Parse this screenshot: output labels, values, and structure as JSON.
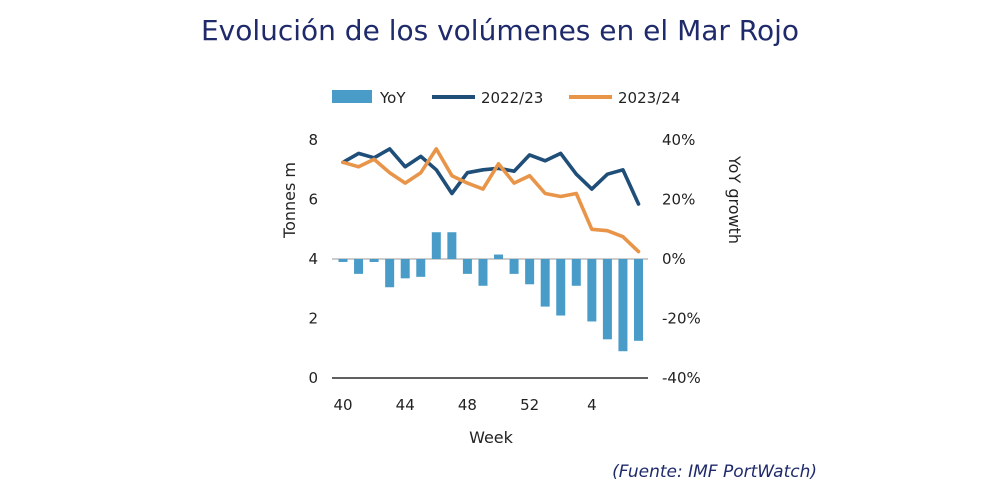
{
  "page": {
    "title": "Evolución de los volúmenes en el Mar Rojo",
    "source": "(Fuente: IMF PortWatch)"
  },
  "chart_data": {
    "type": "bar",
    "title": "Evolución de los volúmenes en el Mar Rojo",
    "xlabel": "Week",
    "ylabel": "Tonnes m",
    "y2label": "YoY growth",
    "ylim": [
      0,
      8
    ],
    "y2lim": [
      -40,
      40
    ],
    "yticks": [
      "0",
      "2",
      "4",
      "6",
      "8"
    ],
    "y2ticks": [
      "-40%",
      "-20%",
      "0%",
      "20%",
      "40%"
    ],
    "xticks": [
      "40",
      "44",
      "48",
      "52",
      "4"
    ],
    "weeks": [
      40,
      41,
      42,
      43,
      44,
      45,
      46,
      47,
      48,
      49,
      50,
      51,
      52,
      1,
      2,
      3,
      4,
      5,
      6,
      7
    ],
    "legend": [
      "YoY",
      "2022/23",
      "2023/24"
    ],
    "colors": {
      "yoy": "#4a9cc8",
      "s2022": "#1f4e79",
      "s2023": "#e8954a"
    },
    "series": [
      {
        "name": "YoY",
        "axis": "right",
        "kind": "bar",
        "values": [
          -1,
          -5,
          -1,
          -9.5,
          -6.5,
          -6,
          9,
          9,
          -5,
          -9,
          1.5,
          -5,
          -8.5,
          -16,
          -19,
          -9,
          -21,
          -27,
          -31,
          -27.5
        ]
      },
      {
        "name": "2022/23",
        "axis": "left",
        "kind": "line",
        "values": [
          7.25,
          7.55,
          7.4,
          7.7,
          7.1,
          7.45,
          7.0,
          6.2,
          6.9,
          7.0,
          7.05,
          6.95,
          7.5,
          7.3,
          7.55,
          6.85,
          6.35,
          6.85,
          7.0,
          5.85
        ]
      },
      {
        "name": "2023/24",
        "axis": "left",
        "kind": "line",
        "values": [
          7.25,
          7.1,
          7.35,
          6.9,
          6.55,
          6.9,
          7.7,
          6.8,
          6.55,
          6.35,
          7.2,
          6.55,
          6.8,
          6.2,
          6.1,
          6.2,
          5.0,
          4.95,
          4.75,
          4.25
        ]
      }
    ]
  }
}
